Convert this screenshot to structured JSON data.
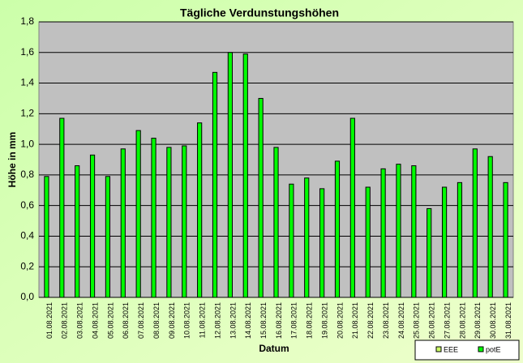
{
  "chart_data": {
    "type": "bar",
    "title": "Tägliche Verdunstungshöhen",
    "x_label": "Datum",
    "y_label": "Höhe in mm",
    "categories": [
      "01.08.2021",
      "02.08.2021",
      "03.08.2021",
      "04.08.2021",
      "05.08.2021",
      "06.08.2021",
      "07.08.2021",
      "08.08.2021",
      "09.08.2021",
      "10.08.2021",
      "11.08.2021",
      "12.08.2021",
      "13.08.2021",
      "14.08.2021",
      "15.08.2021",
      "16.08.2021",
      "17.08.2021",
      "18.08.2021",
      "19.08.2021",
      "20.08.2021",
      "21.08.2021",
      "22.08.2021",
      "23.08.2021",
      "24.08.2021",
      "25.08.2021",
      "26.08.2021",
      "27.08.2021",
      "28.08.2021",
      "29.08.2021",
      "30.08.2021",
      "31.08.2021"
    ],
    "series": [
      {
        "name": "EEE",
        "color": "#ccff66",
        "values": [
          null,
          null,
          null,
          null,
          null,
          null,
          null,
          null,
          null,
          null,
          null,
          null,
          null,
          null,
          null,
          null,
          null,
          null,
          null,
          null,
          null,
          null,
          null,
          null,
          null,
          null,
          null,
          null,
          null,
          null,
          null
        ]
      },
      {
        "name": "potE",
        "color": "#00ff00",
        "values": [
          0.79,
          1.17,
          0.86,
          0.93,
          0.79,
          0.97,
          1.09,
          1.04,
          0.98,
          0.99,
          1.14,
          1.47,
          1.6,
          1.59,
          1.3,
          0.98,
          0.74,
          0.78,
          0.71,
          0.89,
          1.17,
          0.72,
          0.84,
          0.87,
          0.86,
          0.58,
          0.72,
          0.75,
          0.97,
          0.92,
          0.75
        ]
      }
    ],
    "ylim": [
      0,
      1.8
    ],
    "yticks": [
      {
        "value": 0,
        "label": "0,0"
      },
      {
        "value": 0.2,
        "label": "0,2"
      },
      {
        "value": 0.4,
        "label": "0,4"
      },
      {
        "value": 0.6,
        "label": "0,6"
      },
      {
        "value": 0.8,
        "label": "0,8"
      },
      {
        "value": 1.0,
        "label": "1,0"
      },
      {
        "value": 1.2,
        "label": "1,2"
      },
      {
        "value": 1.4,
        "label": "1,4"
      },
      {
        "value": 1.6,
        "label": "1,6"
      },
      {
        "value": 1.8,
        "label": "1,8"
      }
    ],
    "grid": true,
    "legend": "bottom-right"
  }
}
